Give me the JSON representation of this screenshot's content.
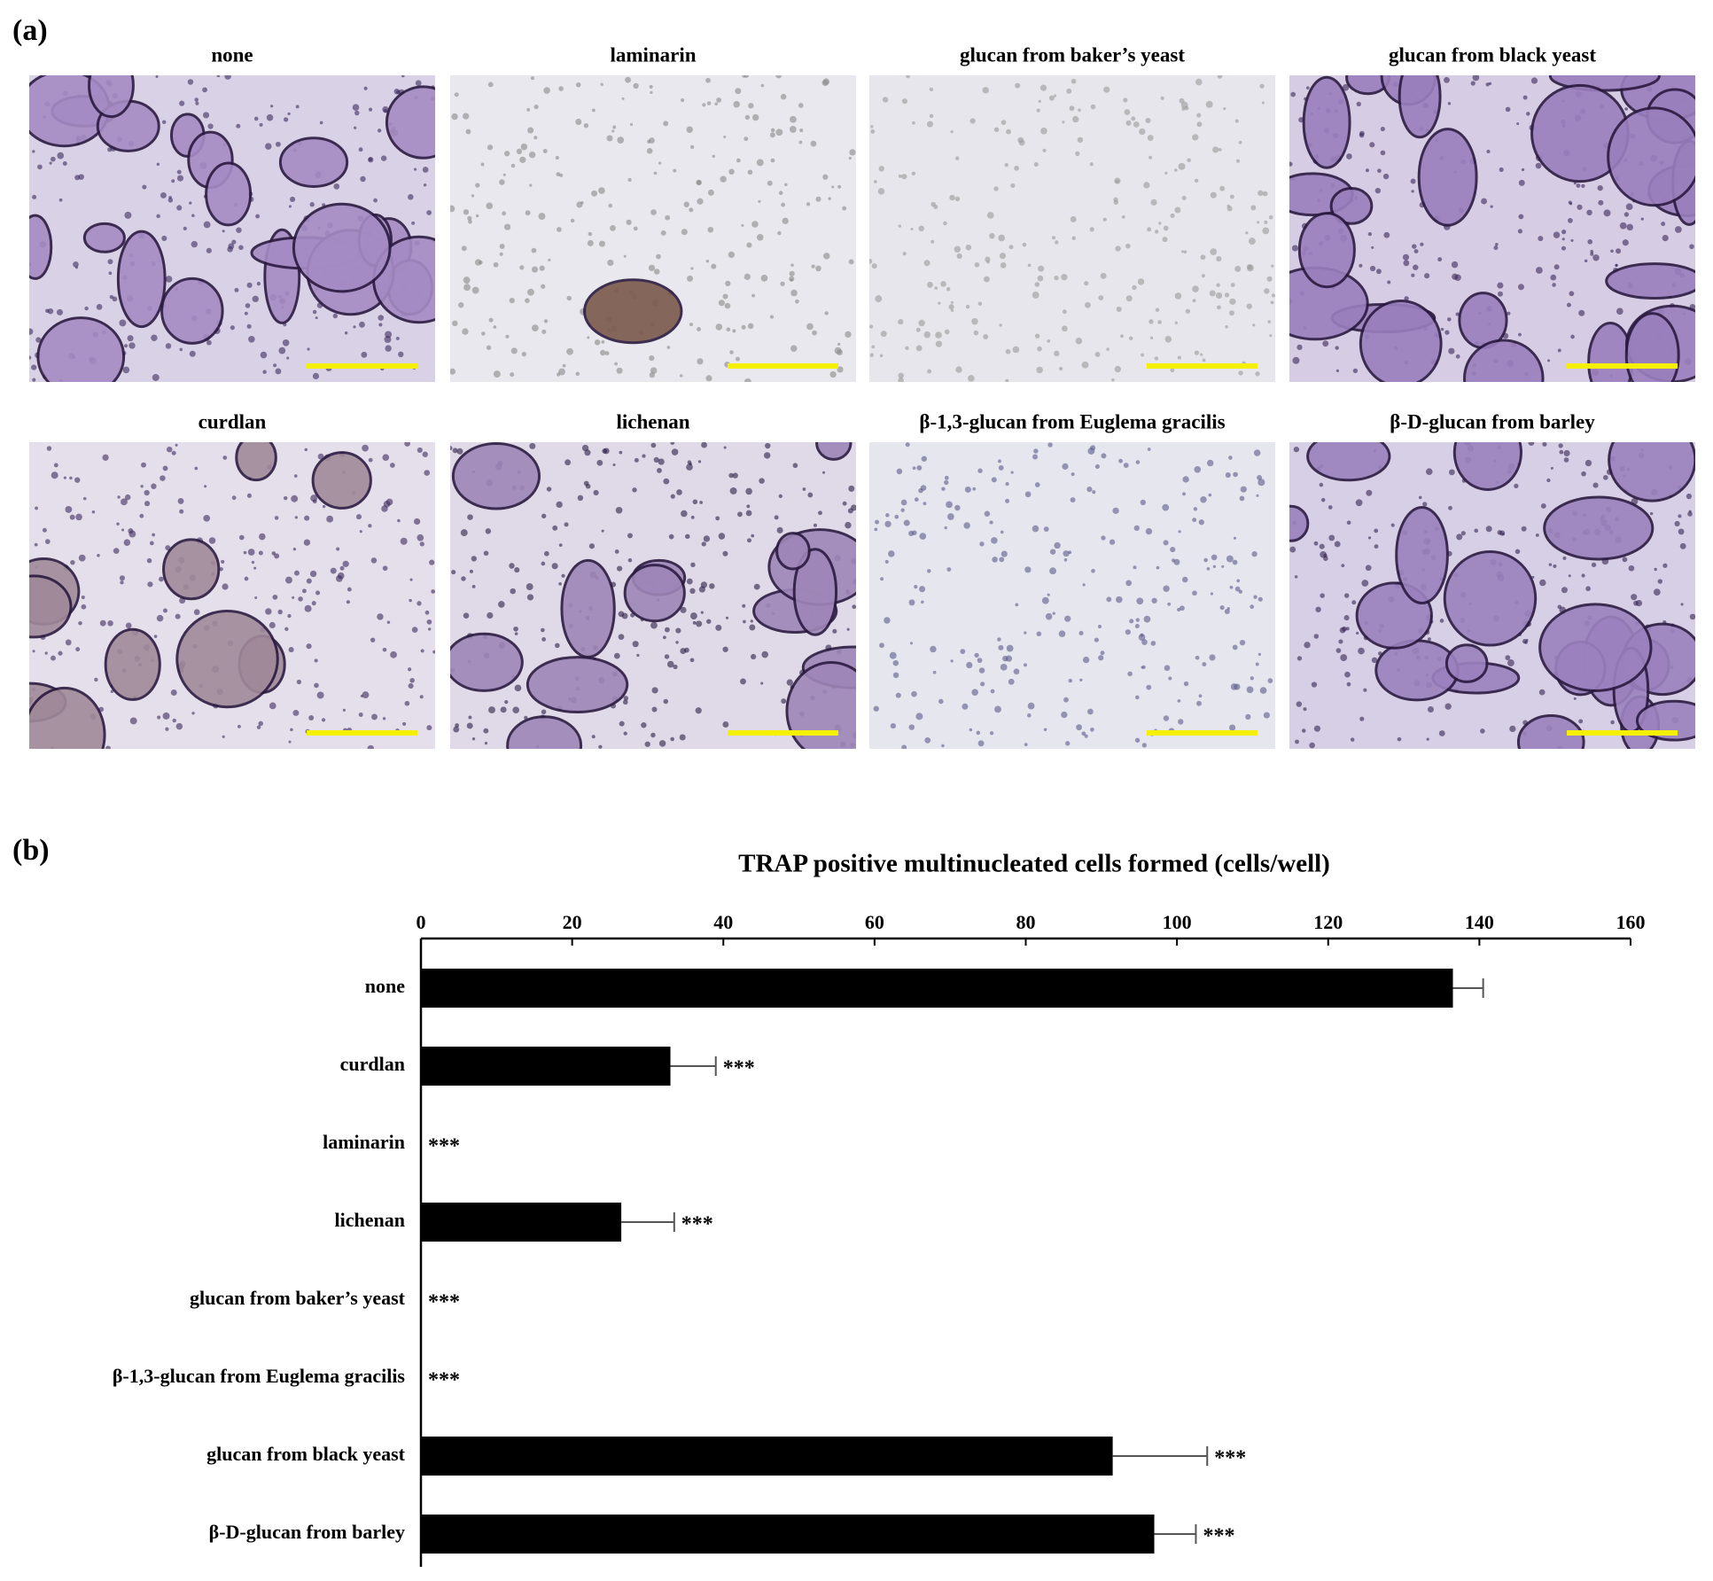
{
  "panel_a": {
    "label": "(a)",
    "images": [
      {
        "title": "none"
      },
      {
        "title": "laminarin"
      },
      {
        "title": "glucan from baker’s yeast"
      },
      {
        "title": "glucan from black yeast"
      },
      {
        "title": "curdlan"
      },
      {
        "title": "lichenan"
      },
      {
        "title": "β-1,3-glucan from Euglema gracilis"
      },
      {
        "title": "β-D-glucan from barley"
      }
    ]
  },
  "chart_data": {
    "type": "hbar",
    "panel_label": "(b)",
    "title": "TRAP positive multinucleated cells formed (cells/well)",
    "categories": [
      "none",
      "curdlan",
      "laminarin",
      "lichenan",
      "glucan from baker’s yeast",
      "β-1,3-glucan from Euglema gracilis",
      "glucan from black yeast",
      "β-D-glucan from barley"
    ],
    "values": [
      136.5,
      33,
      0,
      26.5,
      0,
      0,
      91.5,
      97
    ],
    "errors": [
      4,
      6,
      0,
      7,
      0,
      0,
      12.5,
      5.5
    ],
    "annotations": [
      null,
      "***",
      "***",
      "***",
      "***",
      "***",
      "***",
      "***"
    ],
    "color": "#000000",
    "xlim": [
      0,
      160
    ],
    "xticks": [
      0,
      20,
      40,
      60,
      80,
      100,
      120,
      140,
      160
    ]
  }
}
